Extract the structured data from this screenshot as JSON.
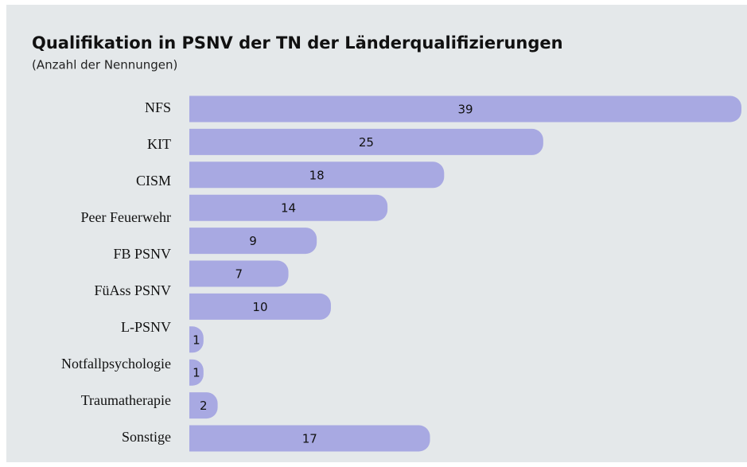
{
  "chart_data": {
    "type": "bar",
    "orientation": "horizontal",
    "title": "Qualifikation in PSNV der TN der Länderqualifizierungen",
    "subtitle": "(Anzahl der Nennungen)",
    "categories": [
      "NFS",
      "KIT",
      "CISM",
      "Peer Feuerwehr",
      "FB PSNV",
      null,
      "FüAss PSNV",
      "L-PSNV",
      "Notfallpsychologie",
      "Traumatherapie",
      "Sonstige"
    ],
    "values": [
      39,
      25,
      18,
      14,
      9,
      7,
      10,
      1,
      1,
      2,
      17
    ],
    "color": "#a8a9e2"
  }
}
